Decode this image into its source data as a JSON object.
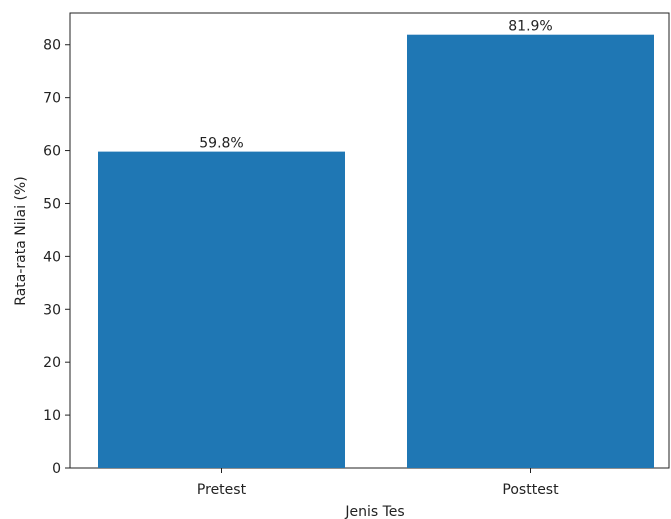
{
  "chart_data": {
    "type": "bar",
    "categories": [
      "Pretest",
      "Posttest"
    ],
    "values": [
      59.8,
      81.9
    ],
    "data_labels": [
      "59.8%",
      "81.9%"
    ],
    "xlabel": "Jenis Tes",
    "ylabel": "Rata-rata Nilai (%)",
    "ylim": [
      0,
      86
    ],
    "yticks": [
      0,
      10,
      20,
      30,
      40,
      50,
      60,
      70,
      80
    ],
    "bar_color": "#1f77b4",
    "grid": false,
    "legend": "none"
  }
}
